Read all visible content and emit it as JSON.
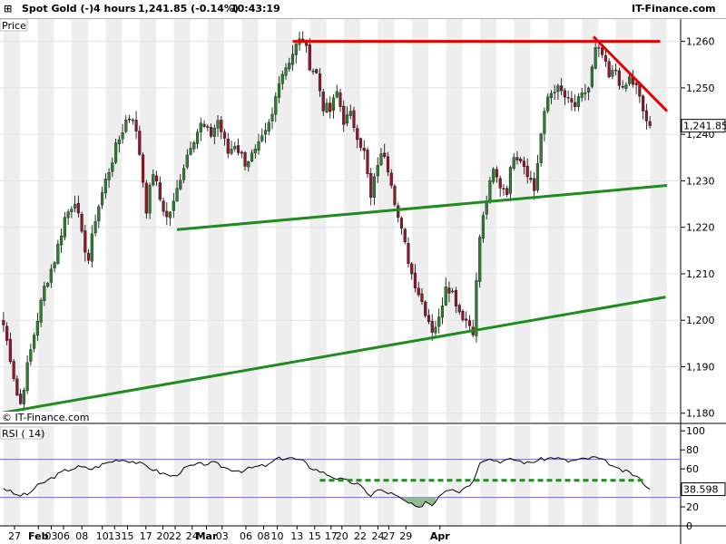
{
  "header": {
    "instrument": "Spot Gold (-)",
    "timeframe": "4 hours",
    "quote": "1,241.85 (-0.14%)",
    "time": "10:43:19",
    "brand": "IT-Finance.com"
  },
  "price_panel": {
    "label": "Price",
    "watermark": "© IT-Finance.com",
    "last_price_label": "1,241.85"
  },
  "rsi_panel": {
    "label": "RSI ( 14)",
    "last_value_label": "38.598"
  },
  "colors": {
    "up_candle": "#2e7d32",
    "down_candle": "#8b1a2b",
    "resistance": "#e60000",
    "support": "#1e8c1e",
    "rsi_line": "#000000",
    "rsi_band": "#7b68c8",
    "shade_band": "#eeeeee"
  },
  "chart_data": [
    {
      "type": "candlestick",
      "title": "Spot Gold (-)",
      "ylim": [
        1178,
        1265
      ],
      "y_ticks": [
        "1,260",
        "1,250",
        "1,240",
        "1,230",
        "1,220",
        "1,210",
        "1,200",
        "1,190",
        "1,180"
      ],
      "y_tick_values": [
        1260,
        1250,
        1240,
        1230,
        1220,
        1210,
        1200,
        1190,
        1180
      ],
      "x_ticks": [
        "27",
        "Feb",
        "03",
        "06",
        "08",
        "10",
        "13",
        "15",
        "17",
        "20",
        "22",
        "24",
        "Mar",
        "03",
        "06",
        "08",
        "10",
        "13",
        "15",
        "17",
        "20",
        "22",
        "24",
        "27",
        "29",
        "Apr"
      ],
      "x_tick_month": [
        false,
        true,
        false,
        false,
        false,
        false,
        false,
        false,
        false,
        false,
        false,
        false,
        true,
        false,
        false,
        false,
        false,
        false,
        false,
        false,
        false,
        false,
        false,
        false,
        false,
        true
      ],
      "x_tick_pos": [
        0.0,
        0.035,
        0.054,
        0.072,
        0.099,
        0.129,
        0.147,
        0.166,
        0.193,
        0.218,
        0.236,
        0.261,
        0.282,
        0.305,
        0.34,
        0.366,
        0.386,
        0.415,
        0.441,
        0.465,
        0.481,
        0.508,
        0.534,
        0.55,
        0.575,
        0.625
      ],
      "close_keypoints": [
        [
          0,
          1199
        ],
        [
          2,
          1192
        ],
        [
          4,
          1184
        ],
        [
          5,
          1182
        ],
        [
          7,
          1190
        ],
        [
          9,
          1197
        ],
        [
          12,
          1207
        ],
        [
          15,
          1213
        ],
        [
          18,
          1222
        ],
        [
          21,
          1226
        ],
        [
          23,
          1218
        ],
        [
          25,
          1213
        ],
        [
          27,
          1222
        ],
        [
          30,
          1230
        ],
        [
          33,
          1237
        ],
        [
          36,
          1243
        ],
        [
          38,
          1244
        ],
        [
          40,
          1236
        ],
        [
          42,
          1224
        ],
        [
          44,
          1232
        ],
        [
          46,
          1226
        ],
        [
          48,
          1222
        ],
        [
          50,
          1225
        ],
        [
          52,
          1231
        ],
        [
          55,
          1238
        ],
        [
          58,
          1242
        ],
        [
          61,
          1240
        ],
        [
          63,
          1243
        ],
        [
          66,
          1236
        ],
        [
          68,
          1238
        ],
        [
          71,
          1234
        ],
        [
          74,
          1236
        ],
        [
          77,
          1240
        ],
        [
          79,
          1244
        ],
        [
          81,
          1252
        ],
        [
          84,
          1256
        ],
        [
          86,
          1259
        ],
        [
          88,
          1261
        ],
        [
          90,
          1255
        ],
        [
          92,
          1253
        ],
        [
          94,
          1246
        ],
        [
          96,
          1245
        ],
        [
          98,
          1249
        ],
        [
          100,
          1243
        ],
        [
          102,
          1244
        ],
        [
          104,
          1240
        ],
        [
          106,
          1236
        ],
        [
          108,
          1226
        ],
        [
          110,
          1234
        ],
        [
          112,
          1236
        ],
        [
          114,
          1230
        ],
        [
          116,
          1222
        ],
        [
          118,
          1216
        ],
        [
          120,
          1210
        ],
        [
          122,
          1206
        ],
        [
          124,
          1202
        ],
        [
          126,
          1198
        ],
        [
          128,
          1200
        ],
        [
          130,
          1208
        ],
        [
          132,
          1206
        ],
        [
          134,
          1202
        ],
        [
          136,
          1200
        ],
        [
          138,
          1198
        ],
        [
          140,
          1218
        ],
        [
          142,
          1226
        ],
        [
          144,
          1232
        ],
        [
          146,
          1229
        ],
        [
          148,
          1228
        ],
        [
          150,
          1236
        ],
        [
          152,
          1235
        ],
        [
          154,
          1232
        ],
        [
          156,
          1228
        ],
        [
          158,
          1240
        ],
        [
          160,
          1248
        ],
        [
          162,
          1250
        ],
        [
          164,
          1249
        ],
        [
          166,
          1247
        ],
        [
          168,
          1246
        ],
        [
          170,
          1248
        ],
        [
          172,
          1250
        ],
        [
          174,
          1258
        ],
        [
          176,
          1257
        ],
        [
          178,
          1252
        ],
        [
          180,
          1254
        ],
        [
          182,
          1249
        ],
        [
          184,
          1252
        ],
        [
          186,
          1250
        ],
        [
          188,
          1245
        ],
        [
          190,
          1241
        ]
      ],
      "last_price": 1241.85,
      "trendlines": [
        {
          "name": "resistance",
          "color": "red",
          "points": [
            [
              0.43,
              1260
            ],
            [
              0.97,
              1260
            ]
          ]
        },
        {
          "name": "resistance",
          "color": "red",
          "points": [
            [
              0.872,
              1261
            ],
            [
              0.98,
              1245
            ]
          ]
        },
        {
          "name": "support",
          "color": "green",
          "points": [
            [
              0.26,
              1219.5
            ],
            [
              0.98,
              1229
            ]
          ]
        },
        {
          "name": "support",
          "color": "green",
          "points": [
            [
              0.0,
              1180
            ],
            [
              0.978,
              1205
            ]
          ]
        }
      ]
    },
    {
      "type": "line",
      "title": "RSI ( 14)",
      "ylim": [
        0,
        105
      ],
      "y_ticks": [
        "100",
        "80",
        "60",
        "40",
        "20",
        "0"
      ],
      "y_tick_values": [
        100,
        80,
        60,
        40,
        20,
        0
      ],
      "bands": [
        70,
        30
      ],
      "last_value": 38.598,
      "rsi_keypoints": [
        [
          0,
          40
        ],
        [
          4,
          32
        ],
        [
          7,
          33
        ],
        [
          10,
          42
        ],
        [
          14,
          50
        ],
        [
          18,
          58
        ],
        [
          22,
          62
        ],
        [
          26,
          60
        ],
        [
          30,
          66
        ],
        [
          34,
          70
        ],
        [
          38,
          68
        ],
        [
          42,
          63
        ],
        [
          46,
          56
        ],
        [
          50,
          52
        ],
        [
          54,
          62
        ],
        [
          58,
          65
        ],
        [
          62,
          66
        ],
        [
          66,
          60
        ],
        [
          70,
          58
        ],
        [
          74,
          62
        ],
        [
          78,
          64
        ],
        [
          80,
          70
        ],
        [
          84,
          72
        ],
        [
          88,
          68
        ],
        [
          90,
          62
        ],
        [
          94,
          56
        ],
        [
          98,
          50
        ],
        [
          100,
          48
        ],
        [
          104,
          44
        ],
        [
          106,
          38
        ],
        [
          108,
          32
        ],
        [
          110,
          38
        ],
        [
          112,
          36
        ],
        [
          114,
          34
        ],
        [
          116,
          30
        ],
        [
          118,
          26
        ],
        [
          120,
          22
        ],
        [
          122,
          18
        ],
        [
          124,
          26
        ],
        [
          126,
          22
        ],
        [
          128,
          32
        ],
        [
          130,
          38
        ],
        [
          132,
          40
        ],
        [
          134,
          36
        ],
        [
          136,
          42
        ],
        [
          138,
          46
        ],
        [
          140,
          68
        ],
        [
          142,
          71
        ],
        [
          146,
          68
        ],
        [
          150,
          70
        ],
        [
          154,
          66
        ],
        [
          158,
          70
        ],
        [
          162,
          72
        ],
        [
          166,
          68
        ],
        [
          170,
          70
        ],
        [
          174,
          72
        ],
        [
          178,
          66
        ],
        [
          180,
          60
        ],
        [
          184,
          56
        ],
        [
          186,
          52
        ],
        [
          188,
          46
        ],
        [
          190,
          38.6
        ]
      ],
      "horizontal_line": {
        "value": 48,
        "x_range": [
          0.47,
          0.95
        ],
        "style": "dashed",
        "color": "green"
      }
    }
  ]
}
